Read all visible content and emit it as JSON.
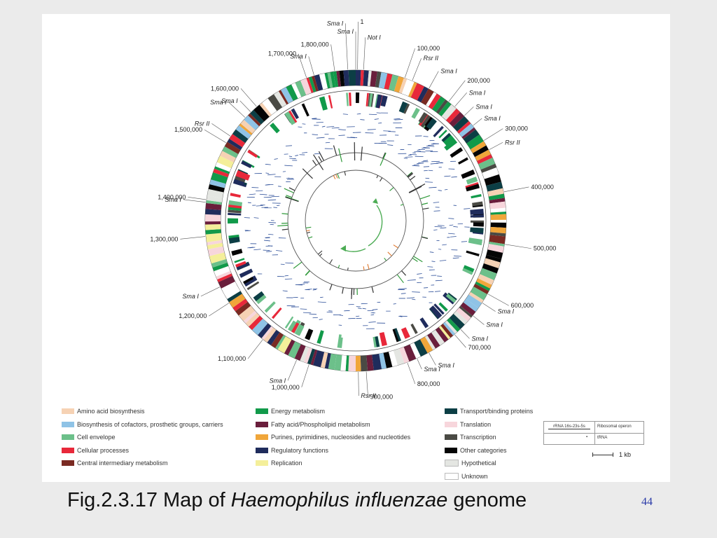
{
  "figure": {
    "outer_ticks": [
      "1",
      "100,000",
      "200,000",
      "300,000",
      "400,000",
      "500,000",
      "600,000",
      "700,000",
      "800,000",
      "900,000",
      "1,000,000",
      "1,100,000",
      "1,200,000",
      "1,300,000",
      "1,400,000",
      "1,500,000",
      "1,600,000",
      "1,700,000",
      "1,800,000"
    ],
    "right_side_labels": [
      {
        "text": "Sma I",
        "style": "italic"
      },
      {
        "text": "Sma I",
        "style": "italic"
      },
      {
        "text": "Not I",
        "style": "italic"
      },
      {
        "text": "1",
        "style": "normal"
      },
      {
        "text": "100,000",
        "style": "normal"
      },
      {
        "text": "Rsr II",
        "style": "italic"
      },
      {
        "text": "Sma I",
        "style": "italic"
      },
      {
        "text": "200,000",
        "style": "normal"
      },
      {
        "text": "Sma I",
        "style": "italic"
      },
      {
        "text": "Sma I",
        "style": "italic"
      },
      {
        "text": "Sma I",
        "style": "italic"
      },
      {
        "text": "300,000",
        "style": "normal"
      },
      {
        "text": "Rsr II",
        "style": "italic"
      },
      {
        "text": "400,000",
        "style": "normal"
      },
      {
        "text": "500,000",
        "style": "normal"
      },
      {
        "text": "600,000",
        "style": "normal"
      },
      {
        "text": "Sma I",
        "style": "italic"
      },
      {
        "text": "Sma I",
        "style": "italic"
      },
      {
        "text": "Sma I",
        "style": "italic"
      },
      {
        "text": "700,000",
        "style": "normal"
      },
      {
        "text": "Sma I",
        "style": "italic"
      },
      {
        "text": "Sma I",
        "style": "italic"
      },
      {
        "text": "800,000",
        "style": "normal"
      },
      {
        "text": "900,000",
        "style": "normal"
      },
      {
        "text": "Rsr II",
        "style": "italic"
      },
      {
        "text": "1,000,000",
        "style": "normal"
      },
      {
        "text": "Sma I",
        "style": "italic"
      },
      {
        "text": "1,100,000",
        "style": "normal"
      },
      {
        "text": "1,200,000",
        "style": "normal"
      },
      {
        "text": "Sma I",
        "style": "italic"
      },
      {
        "text": "1,300,000",
        "style": "normal"
      },
      {
        "text": "Sma I",
        "style": "italic"
      },
      {
        "text": "1,400,000",
        "style": "normal"
      },
      {
        "text": "1,500,000",
        "style": "normal"
      },
      {
        "text": "Rsr II",
        "style": "italic"
      },
      {
        "text": "Sma I",
        "style": "italic"
      },
      {
        "text": "Sma I",
        "style": "italic"
      },
      {
        "text": "1,600,000",
        "style": "normal"
      },
      {
        "text": "1,700,000",
        "style": "normal"
      },
      {
        "text": "Sma I",
        "style": "italic"
      },
      {
        "text": "1,800,000",
        "style": "normal"
      }
    ],
    "legend": [
      {
        "label": "Amino acid biosynthesis",
        "color": "#f6d2b4"
      },
      {
        "label": "Biosynthesis of cofactors, prosthetic groups, carriers",
        "color": "#8fc3e6"
      },
      {
        "label": "Cell envelope",
        "color": "#6cc08a"
      },
      {
        "label": "Cellular processes",
        "color": "#e8283a"
      },
      {
        "label": "Central intermediary metabolism",
        "color": "#7a2a22"
      },
      {
        "label": "Energy metabolism",
        "color": "#119a4a"
      },
      {
        "label": "Fatty acid/Phospholipid metabolism",
        "color": "#6a1e3c"
      },
      {
        "label": "Purines, pyrimidines, nucleosides and nucleotides",
        "color": "#f0a63a"
      },
      {
        "label": "Regulatory functions",
        "color": "#1f2c5c"
      },
      {
        "label": "Replication",
        "color": "#f4ef9a"
      },
      {
        "label": "Transport/binding proteins",
        "color": "#0c3e45"
      },
      {
        "label": "Translation",
        "color": "#f7d6dc"
      },
      {
        "label": "Transcription",
        "color": "#4a4a44"
      },
      {
        "label": "Other categories",
        "color": "#050505"
      },
      {
        "label": "Hypothetical",
        "color": "#e4e6e2"
      },
      {
        "label": "Unknown",
        "color": "#ffffff"
      }
    ],
    "rrna_key": {
      "row1_left": "rRNA 16s-23s-5s",
      "row1_right": "Ribosomal operon",
      "row2_left": "tRNA marker",
      "row2_right": "tRNA"
    },
    "scale_label": "1 kb"
  },
  "caption": {
    "prefix": "Fig.2.3.17 Map of ",
    "species": "Haemophilus influenzae",
    "suffix": " genome"
  },
  "page_number": "44"
}
